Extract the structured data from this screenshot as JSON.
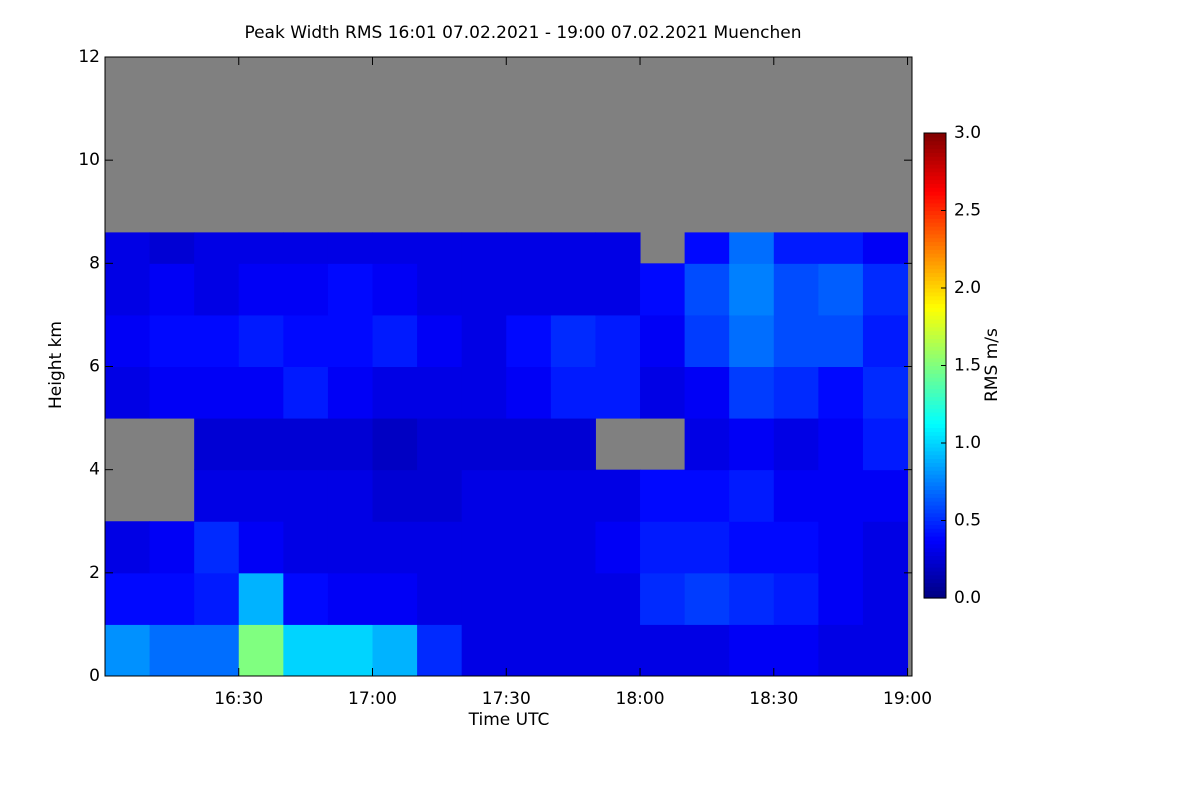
{
  "chart_data": {
    "type": "heatmap",
    "title": "Peak Width RMS   16:01 07.02.2021 - 19:00 07.02.2021 Muenchen",
    "x_label": "Time UTC",
    "y_label": "Height km",
    "colorbar_label": "RMS m/s",
    "colormap": "jet",
    "background": "#808080",
    "xbins": [
      960,
      970,
      980,
      990,
      1000,
      1010,
      1020,
      1030,
      1040,
      1050,
      1060,
      1070,
      1080,
      1090,
      1100,
      1110,
      1120,
      1130,
      1140
    ],
    "ybins": [
      0,
      1,
      2,
      3,
      4,
      5,
      6,
      7,
      8,
      8.6
    ],
    "z": [
      [
        0.8,
        0.7,
        0.7,
        1.5,
        1.0,
        1.0,
        0.9,
        0.5,
        0.3,
        0.3,
        0.3,
        0.3,
        0.3,
        0.3,
        0.35,
        0.35,
        0.3,
        0.3
      ],
      [
        0.4,
        0.4,
        0.45,
        0.9,
        0.4,
        0.35,
        0.35,
        0.3,
        0.3,
        0.3,
        0.3,
        0.3,
        0.5,
        0.55,
        0.5,
        0.45,
        0.35,
        0.3
      ],
      [
        0.3,
        0.35,
        0.5,
        0.35,
        0.3,
        0.3,
        0.3,
        0.3,
        0.3,
        0.3,
        0.3,
        0.35,
        0.45,
        0.45,
        0.4,
        0.4,
        0.35,
        0.3
      ],
      [
        null,
        null,
        0.3,
        0.3,
        0.3,
        0.3,
        0.25,
        0.25,
        0.3,
        0.3,
        0.3,
        0.3,
        0.4,
        0.4,
        0.45,
        0.35,
        0.35,
        0.35
      ],
      [
        null,
        null,
        0.25,
        0.25,
        0.25,
        0.25,
        0.2,
        0.25,
        0.25,
        0.25,
        0.25,
        null,
        null,
        0.3,
        0.35,
        0.3,
        0.35,
        0.45
      ],
      [
        0.3,
        0.35,
        0.35,
        0.35,
        0.45,
        0.35,
        0.3,
        0.3,
        0.3,
        0.35,
        0.45,
        0.45,
        0.3,
        0.35,
        0.55,
        0.5,
        0.4,
        0.5
      ],
      [
        0.35,
        0.4,
        0.4,
        0.45,
        0.4,
        0.4,
        0.45,
        0.35,
        0.3,
        0.4,
        0.5,
        0.45,
        0.35,
        0.55,
        0.7,
        0.6,
        0.6,
        0.45
      ],
      [
        0.3,
        0.35,
        0.3,
        0.35,
        0.35,
        0.4,
        0.35,
        0.3,
        0.3,
        0.3,
        0.3,
        0.3,
        0.4,
        0.6,
        0.75,
        0.6,
        0.65,
        0.5
      ],
      [
        0.3,
        0.25,
        0.3,
        0.3,
        0.3,
        0.3,
        0.3,
        0.3,
        0.3,
        0.3,
        0.3,
        0.3,
        null,
        0.4,
        0.7,
        0.45,
        0.45,
        0.35
      ]
    ],
    "xlim": [
      960,
      1141
    ],
    "xticks": [
      {
        "value": 990,
        "label": "16:30"
      },
      {
        "value": 1020,
        "label": "17:00"
      },
      {
        "value": 1050,
        "label": "17:30"
      },
      {
        "value": 1080,
        "label": "18:00"
      },
      {
        "value": 1110,
        "label": "18:30"
      },
      {
        "value": 1140,
        "label": "19:00"
      }
    ],
    "ylim": [
      0,
      12
    ],
    "yticks": [
      0,
      2,
      4,
      6,
      8,
      10,
      12
    ],
    "clim": [
      0,
      3
    ],
    "cticks": [
      {
        "value": 0,
        "label": "0.0"
      },
      {
        "value": 0.5,
        "label": "0.5"
      },
      {
        "value": 1,
        "label": "1.0"
      },
      {
        "value": 1.5,
        "label": "1.5"
      },
      {
        "value": 2,
        "label": "2.0"
      },
      {
        "value": 2.5,
        "label": "2.5"
      },
      {
        "value": 3,
        "label": "3.0"
      }
    ]
  }
}
